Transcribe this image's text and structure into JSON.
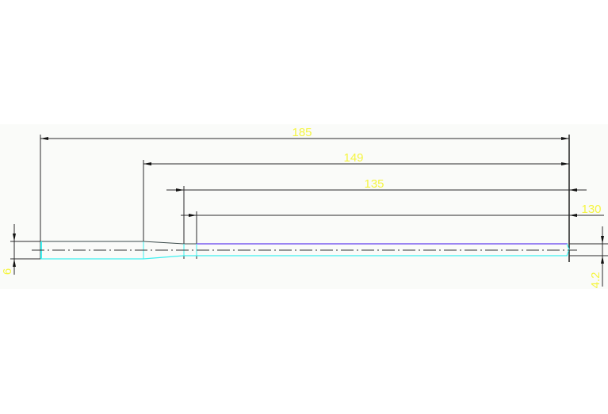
{
  "drawing": {
    "dimensions": {
      "overall_length": "185",
      "length_149": "149",
      "length_135": "135",
      "length_130": "130",
      "left_diameter": "6",
      "right_diameter": "4.2"
    },
    "colors": {
      "background": "#fafbf9",
      "dimension_line": "#2a2a2a",
      "dimension_text": "#f5f542",
      "outline_cyan": "#3ef0f0",
      "outline_purple": "#7b5cf0",
      "outline_dark": "#3a4a4a"
    }
  }
}
